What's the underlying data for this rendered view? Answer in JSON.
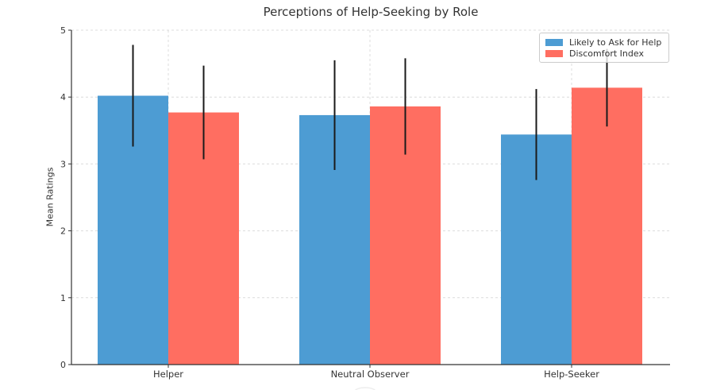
{
  "chart_data": {
    "type": "bar",
    "title": "Perceptions of Help-Seeking by Role",
    "ylabel": "Mean Ratings",
    "xlabel": "",
    "categories": [
      "Helper",
      "Neutral Observer",
      "Help-Seeker"
    ],
    "series": [
      {
        "name": "Likely to Ask for Help",
        "color": "#4D9CD3",
        "values": [
          4.02,
          3.73,
          3.44
        ],
        "errors": [
          0.76,
          0.82,
          0.68
        ]
      },
      {
        "name": "Discomfort Index",
        "color": "#FF6E61",
        "values": [
          3.77,
          3.86,
          4.14
        ],
        "errors": [
          0.7,
          0.72,
          0.58
        ]
      }
    ],
    "ylim": [
      0,
      5
    ],
    "yticks": [
      "0",
      "1",
      "2",
      "3",
      "4",
      "5"
    ],
    "grid": true,
    "grid_style": "dashed",
    "grid_color": "#dcdcdc",
    "error_bar_color": "#1a1a1a",
    "axis_color": "#333333",
    "legend_position": "upper-right"
  }
}
